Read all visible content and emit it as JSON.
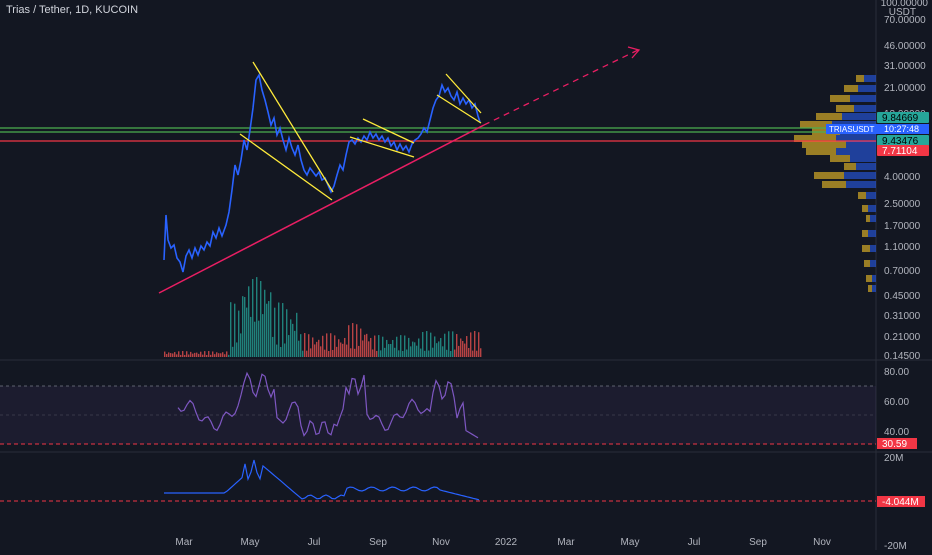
{
  "header": {
    "title": "Trias / Tether, 1D, KUCOIN"
  },
  "price_axis": {
    "currency_top": "100.00000",
    "currency_label": "USDT",
    "ticks": [
      "70.00000",
      "46.00000",
      "31.00000",
      "21.00000",
      "13.00000",
      "4.00000",
      "2.50000",
      "1.70000",
      "1.10000",
      "0.70000",
      "0.45000",
      "0.31000",
      "0.21000",
      "0.14500"
    ],
    "badges": [
      {
        "text": "9.84669",
        "color": "#26a69a"
      },
      {
        "text": "9.43476",
        "color": "#26a69a"
      },
      {
        "text": "7.71104",
        "color": "#f23645"
      }
    ],
    "symbol_badge": {
      "symbol": "TRIASUSDT",
      "countdown": "10:27:48",
      "color": "#2962ff"
    }
  },
  "rsi_axis": {
    "ticks": [
      "80.00",
      "60.00",
      "40.00"
    ],
    "value_badge": "30.59",
    "badge_color": "#f23645"
  },
  "osc_axis": {
    "ticks": [
      "20M",
      "-20M"
    ],
    "value_badge": "-4.044M",
    "badge_color": "#f23645"
  },
  "time_axis": {
    "labels": [
      "Mar",
      "May",
      "Jul",
      "Sep",
      "Nov",
      "2022",
      "Mar",
      "May",
      "Jul",
      "Sep",
      "Nov"
    ]
  },
  "colors": {
    "background": "#131722",
    "price_line": "#2962ff",
    "trend_yellow": "#ffeb3b",
    "trend_pink": "#e91e63",
    "hline_green": "#4caf50",
    "hline_red": "#f23645",
    "rsi_line": "#7e57c2",
    "rsi_band": "#7e57c2",
    "vol_up": "#26a69a",
    "vol_down": "#ef5350",
    "vp_up": "#c8a227",
    "vp_down": "#2962ff"
  }
}
